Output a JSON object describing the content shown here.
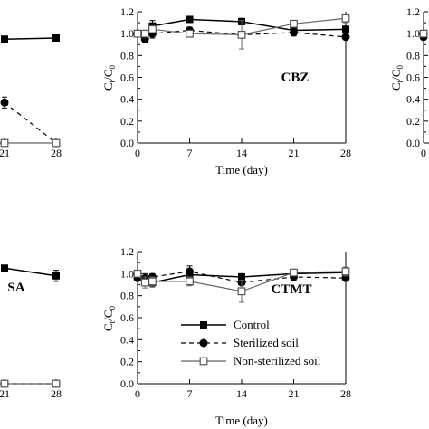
{
  "legend": {
    "entries": [
      {
        "label": "Control",
        "color": "#000000",
        "marker": "filled-square",
        "line": "solid"
      },
      {
        "label": "Sterilized soil",
        "color": "#000000",
        "marker": "filled-circle",
        "line": "dashed"
      },
      {
        "label": "Non-sterilized soil",
        "color": "#555555",
        "marker": "open-square",
        "line": "solid"
      }
    ]
  },
  "chart_data": [
    {
      "type": "line",
      "title": "",
      "xlabel": "",
      "ylabel": "",
      "x": [
        21,
        28
      ],
      "xticks": [
        "21",
        "28"
      ],
      "series": [
        {
          "name": "Control",
          "values": [
            0.95,
            0.96
          ],
          "errors": [
            0,
            0
          ]
        },
        {
          "name": "Sterilized soil",
          "values": [
            0.37,
            0.0
          ],
          "errors": [
            0.05,
            0
          ]
        },
        {
          "name": "Non-sterilized soil",
          "values": [
            0.0,
            0.0
          ],
          "errors": [
            0,
            0
          ]
        }
      ]
    },
    {
      "type": "line",
      "title": "CBZ",
      "xlabel": "Time (day)",
      "ylabel": "Ct/C0",
      "ylabel_main": "C",
      "ylabel_sub1": "t",
      "ylabel_mid": "/C",
      "ylabel_sub2": "0",
      "x": [
        0,
        1,
        2,
        7,
        14,
        21,
        28
      ],
      "xticks": [
        "0",
        "7",
        "14",
        "21",
        "28"
      ],
      "yticks": [
        "0.0",
        "0.2",
        "0.4",
        "0.6",
        "0.8",
        "1.0",
        "1.2"
      ],
      "ylim": [
        0,
        1.2
      ],
      "xlim": [
        0,
        28
      ],
      "series": [
        {
          "name": "Control",
          "values": [
            1.0,
            0.99,
            1.07,
            1.13,
            1.11,
            1.03,
            1.04
          ],
          "errors": [
            0.02,
            0.03,
            0.05,
            0.02,
            0.03,
            0.05,
            0.03
          ]
        },
        {
          "name": "Sterilized soil",
          "values": [
            1.0,
            0.95,
            1.0,
            1.03,
            0.99,
            1.01,
            0.97
          ],
          "errors": [
            0.02,
            0.03,
            0.04,
            0.03,
            0.03,
            0.03,
            0.02
          ]
        },
        {
          "name": "Non-sterilized soil",
          "values": [
            1.0,
            1.0,
            1.04,
            1.0,
            0.99,
            1.09,
            1.14
          ],
          "errors": [
            0.02,
            0.02,
            0.03,
            0.02,
            0.13,
            0.03,
            0.04
          ]
        }
      ]
    },
    {
      "type": "line",
      "title": "",
      "xlabel": "",
      "ylabel": "Ct/C0",
      "ylabel_main": "C",
      "ylabel_sub1": "t",
      "ylabel_mid": "/C",
      "ylabel_sub2": "0",
      "x": [
        0
      ],
      "xticks": [
        "0"
      ],
      "yticks": [
        "0.0",
        "0.2",
        "0.4",
        "0.6",
        "0.8",
        "1.0",
        "1.2"
      ],
      "ylim": [
        0,
        1.2
      ],
      "series": [
        {
          "name": "Control",
          "values": [
            1.0
          ],
          "errors": [
            0
          ]
        },
        {
          "name": "Sterilized soil",
          "values": [
            0.97
          ],
          "errors": [
            0
          ]
        },
        {
          "name": "Non-sterilized soil",
          "values": [
            1.0
          ],
          "errors": [
            0
          ]
        }
      ]
    },
    {
      "type": "line",
      "title": "SA",
      "xlabel": "",
      "ylabel": "",
      "x": [
        21,
        28
      ],
      "xticks": [
        "21",
        "28"
      ],
      "series": [
        {
          "name": "Control",
          "values": [
            1.05,
            0.98
          ],
          "errors": [
            0,
            0.05
          ]
        },
        {
          "name": "Sterilized soil",
          "values": [
            0.0,
            0.0
          ],
          "errors": [
            0,
            0
          ]
        },
        {
          "name": "Non-sterilized soil",
          "values": [
            0.0,
            0.0
          ],
          "errors": [
            0,
            0
          ]
        }
      ]
    },
    {
      "type": "line",
      "title": "CTMT",
      "xlabel": "Time (day)",
      "ylabel": "Ct/C0",
      "ylabel_main": "C",
      "ylabel_sub1": "t",
      "ylabel_mid": "/C",
      "ylabel_sub2": "0",
      "x": [
        0,
        1,
        2,
        7,
        14,
        21,
        28
      ],
      "xticks": [
        "0",
        "7",
        "14",
        "21",
        "28"
      ],
      "yticks": [
        "0.0",
        "0.2",
        "0.4",
        "0.6",
        "0.8",
        "1.0",
        "1.2"
      ],
      "ylim": [
        0,
        1.2
      ],
      "xlim": [
        0,
        28
      ],
      "series": [
        {
          "name": "Control",
          "values": [
            0.97,
            0.95,
            0.92,
            0.99,
            0.97,
            1.0,
            1.01
          ],
          "errors": [
            0.02,
            0.03,
            0.04,
            0.03,
            0.03,
            0.04,
            0.04
          ]
        },
        {
          "name": "Sterilized soil",
          "values": [
            0.96,
            0.96,
            0.97,
            1.02,
            0.92,
            0.97,
            0.96
          ],
          "errors": [
            0.02,
            0.04,
            0.03,
            0.05,
            0.05,
            0.03,
            0.02
          ]
        },
        {
          "name": "Non-sterilized soil",
          "values": [
            1.0,
            0.92,
            0.93,
            0.93,
            0.84,
            1.01,
            1.02
          ],
          "errors": [
            0.02,
            0.05,
            0.04,
            0.04,
            0.1,
            0.03,
            0.04
          ]
        }
      ]
    }
  ]
}
